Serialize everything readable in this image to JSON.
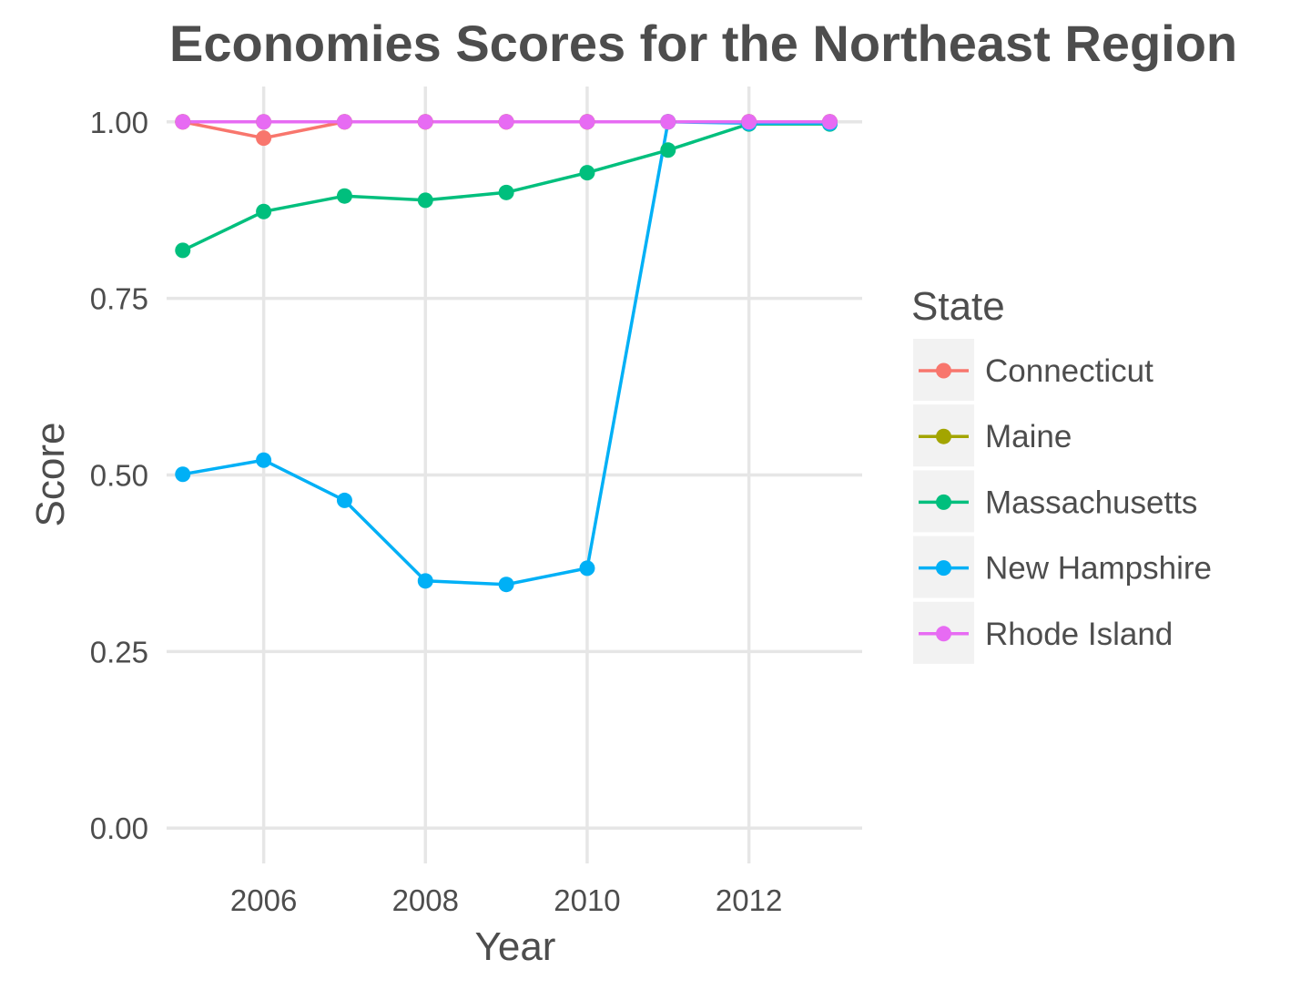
{
  "chart_data": {
    "type": "line",
    "title": "Economies Scores for the Northeast Region",
    "xlabel": "Year",
    "ylabel": "Score",
    "xlim": [
      2004.8,
      2013.4
    ],
    "ylim": [
      -0.05,
      1.05
    ],
    "x_ticks": [
      2006,
      2008,
      2010,
      2012
    ],
    "y_ticks": [
      0,
      0.25,
      0.5,
      0.75,
      1.0
    ],
    "y_tick_labels": [
      "0.00",
      "0.25",
      "0.50",
      "0.75",
      "1.00"
    ],
    "x_tick_labels": [
      "2006",
      "2008",
      "2010",
      "2012"
    ],
    "grid": true,
    "legend_title": "State",
    "legend_position": "right",
    "x": [
      2005,
      2006,
      2007,
      2008,
      2009,
      2010,
      2011,
      2012,
      2013
    ],
    "series": [
      {
        "name": "Connecticut",
        "color": "#F8766D",
        "values": [
          1.0,
          0.977,
          1.0,
          1.0,
          1.0,
          1.0,
          1.0,
          1.0,
          1.0
        ]
      },
      {
        "name": "Maine",
        "color": "#A3A500",
        "values": [
          1.0,
          1.0,
          1.0,
          1.0,
          1.0,
          1.0,
          1.0,
          1.0,
          1.0
        ]
      },
      {
        "name": "Massachusetts",
        "color": "#00BF7D",
        "values": [
          0.818,
          0.873,
          0.895,
          0.889,
          0.9,
          0.928,
          0.96,
          0.997,
          0.997
        ]
      },
      {
        "name": "New Hampshire",
        "color": "#00B0F6",
        "values": [
          0.501,
          0.521,
          0.464,
          0.35,
          0.345,
          0.368,
          1.0,
          0.998,
          0.998
        ]
      },
      {
        "name": "Rhode Island",
        "color": "#E76BF3",
        "values": [
          1.0,
          1.0,
          1.0,
          1.0,
          1.0,
          1.0,
          1.0,
          1.0,
          1.0
        ]
      }
    ]
  }
}
